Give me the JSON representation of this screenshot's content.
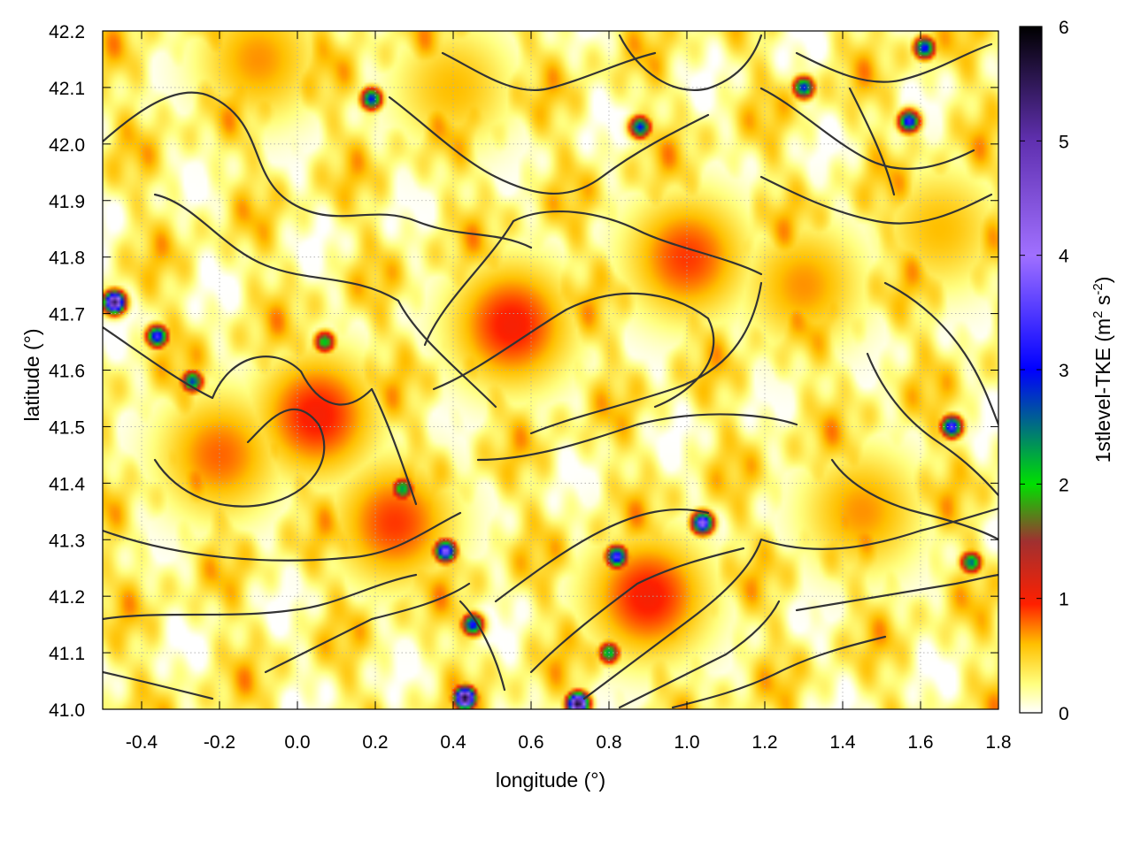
{
  "chart_data": {
    "type": "heatmap",
    "title": "",
    "xlabel": "longitude (°)",
    "ylabel": "latitude (°)",
    "xlim": [
      -0.5,
      1.8
    ],
    "ylim": [
      41.0,
      42.2
    ],
    "xticks": [
      {
        "value": -0.4,
        "label": "-0.4"
      },
      {
        "value": -0.2,
        "label": "-0.2"
      },
      {
        "value": 0.0,
        "label": "0.0"
      },
      {
        "value": 0.2,
        "label": "0.2"
      },
      {
        "value": 0.4,
        "label": "0.4"
      },
      {
        "value": 0.6,
        "label": "0.6"
      },
      {
        "value": 0.8,
        "label": "0.8"
      },
      {
        "value": 1.0,
        "label": "1.0"
      },
      {
        "value": 1.2,
        "label": "1.2"
      },
      {
        "value": 1.4,
        "label": "1.4"
      },
      {
        "value": 1.6,
        "label": "1.6"
      },
      {
        "value": 1.8,
        "label": "1.8"
      }
    ],
    "yticks": [
      {
        "value": 41.0,
        "label": "41.0"
      },
      {
        "value": 41.1,
        "label": "41.1"
      },
      {
        "value": 41.2,
        "label": "41.2"
      },
      {
        "value": 41.3,
        "label": "41.3"
      },
      {
        "value": 41.4,
        "label": "41.4"
      },
      {
        "value": 41.5,
        "label": "41.5"
      },
      {
        "value": 41.6,
        "label": "41.6"
      },
      {
        "value": 41.7,
        "label": "41.7"
      },
      {
        "value": 41.8,
        "label": "41.8"
      },
      {
        "value": 41.9,
        "label": "41.9"
      },
      {
        "value": 42.0,
        "label": "42.0"
      },
      {
        "value": 42.1,
        "label": "42.1"
      },
      {
        "value": 42.2,
        "label": "42.2"
      }
    ],
    "grid": true,
    "colorbar": {
      "label_main": "1stlevel-TKE (m",
      "label_sup1": "2",
      "label_mid": " s",
      "label_sup2": "-2",
      "label_end": ")",
      "range": [
        0,
        6
      ],
      "ticks": [
        {
          "value": 0,
          "label": "0"
        },
        {
          "value": 1,
          "label": "1"
        },
        {
          "value": 2,
          "label": "2"
        },
        {
          "value": 3,
          "label": "3"
        },
        {
          "value": 4,
          "label": "4"
        },
        {
          "value": 5,
          "label": "5"
        },
        {
          "value": 6,
          "label": "6"
        }
      ],
      "stops": [
        {
          "value": 0.0,
          "color": "#ffffff"
        },
        {
          "value": 0.25,
          "color": "#ffff80"
        },
        {
          "value": 0.6,
          "color": "#ffc000"
        },
        {
          "value": 0.95,
          "color": "#ff2000"
        },
        {
          "value": 1.5,
          "color": "#a03030"
        },
        {
          "value": 2.0,
          "color": "#00e000"
        },
        {
          "value": 3.0,
          "color": "#0000ff"
        },
        {
          "value": 4.0,
          "color": "#a070ff"
        },
        {
          "value": 5.0,
          "color": "#6030b0"
        },
        {
          "value": 6.0,
          "color": "#000000"
        }
      ]
    },
    "hotspots": [
      {
        "lon": -0.47,
        "lat": 41.72,
        "value": 5.5
      },
      {
        "lon": -0.36,
        "lat": 41.66,
        "value": 3.5
      },
      {
        "lon": -0.27,
        "lat": 41.58,
        "value": 2.8
      },
      {
        "lon": 0.19,
        "lat": 42.08,
        "value": 3.0
      },
      {
        "lon": 0.38,
        "lat": 41.28,
        "value": 4.0
      },
      {
        "lon": 0.45,
        "lat": 41.15,
        "value": 3.2
      },
      {
        "lon": 0.43,
        "lat": 41.02,
        "value": 5.8
      },
      {
        "lon": 0.72,
        "lat": 41.01,
        "value": 5.8
      },
      {
        "lon": 0.82,
        "lat": 41.27,
        "value": 3.6
      },
      {
        "lon": 1.04,
        "lat": 41.33,
        "value": 4.2
      },
      {
        "lon": 0.88,
        "lat": 42.03,
        "value": 3.0
      },
      {
        "lon": 1.57,
        "lat": 42.04,
        "value": 3.4
      },
      {
        "lon": 1.68,
        "lat": 41.5,
        "value": 3.6
      },
      {
        "lon": 1.73,
        "lat": 41.26,
        "value": 2.6
      },
      {
        "lon": 1.3,
        "lat": 42.1,
        "value": 3.0
      },
      {
        "lon": 1.61,
        "lat": 42.17,
        "value": 3.2
      },
      {
        "lon": 0.8,
        "lat": 41.1,
        "value": 2.4
      },
      {
        "lon": 0.07,
        "lat": 41.65,
        "value": 2.2
      },
      {
        "lon": 0.27,
        "lat": 41.39,
        "value": 2.4
      }
    ],
    "warm_bands": [
      {
        "lon": -0.2,
        "lat": 41.45,
        "value": 0.8
      },
      {
        "lon": 0.05,
        "lat": 41.52,
        "value": 1.0
      },
      {
        "lon": 0.55,
        "lat": 41.68,
        "value": 1.0
      },
      {
        "lon": 1.0,
        "lat": 41.8,
        "value": 0.9
      },
      {
        "lon": 0.25,
        "lat": 41.33,
        "value": 0.9
      },
      {
        "lon": 0.9,
        "lat": 41.2,
        "value": 1.0
      },
      {
        "lon": 1.45,
        "lat": 41.35,
        "value": 0.7
      },
      {
        "lon": 1.3,
        "lat": 41.75,
        "value": 0.7
      },
      {
        "lon": -0.1,
        "lat": 42.15,
        "value": 0.7
      },
      {
        "lon": 0.4,
        "lat": 42.1,
        "value": 0.6
      },
      {
        "lon": 1.65,
        "lat": 41.85,
        "value": 0.6
      }
    ]
  }
}
